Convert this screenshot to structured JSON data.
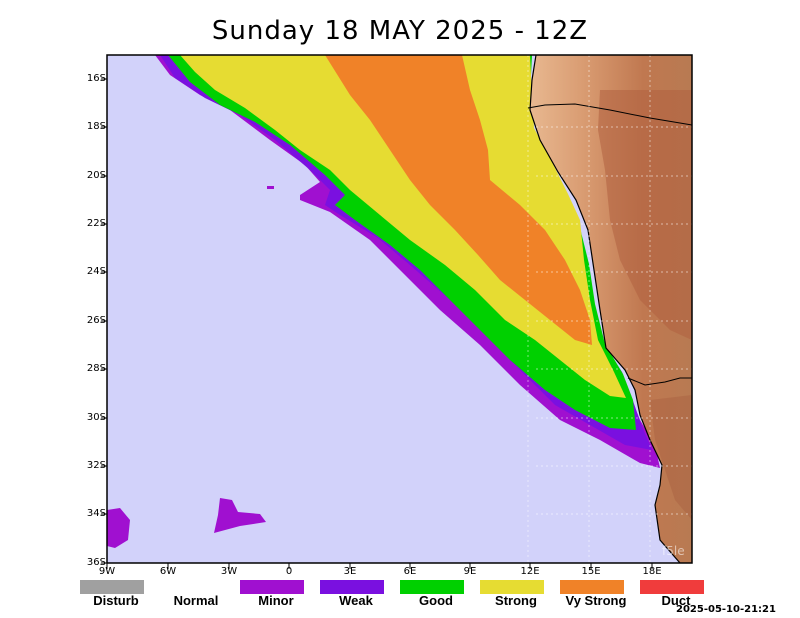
{
  "title": "Sunday 18 MAY 2025 - 12Z",
  "y_axis": {
    "labels": [
      "16S",
      "18S",
      "20S",
      "22S",
      "24S",
      "26S",
      "28S",
      "30S",
      "32S",
      "34S",
      "36S"
    ]
  },
  "x_axis": {
    "labels": [
      "9W",
      "6W",
      "3W",
      "0",
      "3E",
      "6E",
      "9E",
      "12E",
      "15E",
      "18E"
    ]
  },
  "legend": [
    {
      "label": "Disturb",
      "color": "#a0a0a0"
    },
    {
      "label": "Normal",
      "color": "#ffffff"
    },
    {
      "label": "Minor",
      "color": "#a010d0"
    },
    {
      "label": "Weak",
      "color": "#7a10e0"
    },
    {
      "label": "Good",
      "color": "#00d000"
    },
    {
      "label": "Strong",
      "color": "#e6dc32"
    },
    {
      "label": "Vy Strong",
      "color": "#f08228"
    },
    {
      "label": "Duct",
      "color": "#f03c3c"
    }
  ],
  "colors": {
    "ocean": "#d2d2fa",
    "minor": "#a010d0",
    "weak": "#7a10e0",
    "good": "#00d000",
    "strong": "#e6dc32",
    "vy_strong": "#f08228",
    "land": "#c88055"
  },
  "timestamp": "2025-05-10-21:21",
  "watermark": "f5le"
}
